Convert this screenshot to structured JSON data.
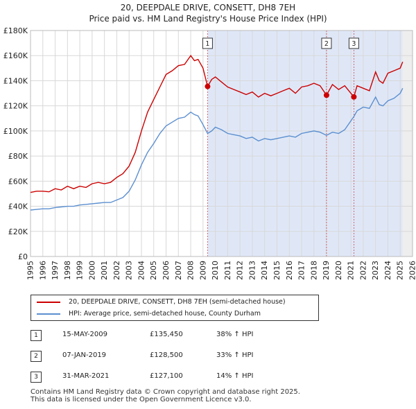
{
  "title_line1": "20, DEEPDALE DRIVE, CONSETT, DH8 7EH",
  "title_line2": "Price paid vs. HM Land Registry's House Price Index (HPI)",
  "colors": {
    "property": "#cc0000",
    "hpi": "#5b8fd0",
    "shade": "#dfe7f7",
    "grid": "#d8d8d8"
  },
  "legend": {
    "property_label": "20, DEEPDALE DRIVE, CONSETT, DH8 7EH (semi-detached house)",
    "hpi_label": "HPI: Average price, semi-detached house, County Durham"
  },
  "sales": [
    {
      "num": "1",
      "date": "15-MAY-2009",
      "price": "£135,450",
      "hpi": "38% ↑ HPI"
    },
    {
      "num": "2",
      "date": "07-JAN-2019",
      "price": "£128,500",
      "hpi": "33% ↑ HPI"
    },
    {
      "num": "3",
      "date": "31-MAR-2021",
      "price": "£127,100",
      "hpi": "14% ↑ HPI"
    }
  ],
  "footer_line1": "Contains HM Land Registry data © Crown copyright and database right 2025.",
  "footer_line2": "This data is licensed under the Open Government Licence v3.0.",
  "chart_data": {
    "type": "line",
    "title": "20, DEEPDALE DRIVE, CONSETT, DH8 7EH",
    "subtitle": "Price paid vs. HM Land Registry's House Price Index (HPI)",
    "xlabel": "",
    "ylabel": "",
    "xlim": [
      1995,
      2026
    ],
    "ylim": [
      0,
      180000
    ],
    "x_ticks": [
      1995,
      1996,
      1997,
      1998,
      1999,
      2000,
      2001,
      2002,
      2003,
      2004,
      2005,
      2006,
      2007,
      2008,
      2009,
      2010,
      2011,
      2012,
      2013,
      2014,
      2015,
      2016,
      2017,
      2018,
      2019,
      2020,
      2021,
      2022,
      2023,
      2024,
      2025,
      2026
    ],
    "y_ticks": [
      0,
      20000,
      40000,
      60000,
      80000,
      100000,
      120000,
      140000,
      160000,
      180000
    ],
    "y_tick_labels": [
      "£0",
      "£20K",
      "£40K",
      "£60K",
      "£80K",
      "£100K",
      "£120K",
      "£140K",
      "£160K",
      "£180K"
    ],
    "grid": true,
    "shaded_region": [
      2009.37,
      2025.2
    ],
    "future_region": [
      2025.2,
      2026
    ],
    "series": [
      {
        "name": "20, DEEPDALE DRIVE, CONSETT, DH8 7EH (semi-detached house)",
        "x": [
          1995,
          1995.5,
          1996,
          1996.5,
          1997,
          1997.5,
          1998,
          1998.5,
          1999,
          1999.5,
          2000,
          2000.5,
          2001,
          2001.5,
          2002,
          2002.5,
          2003,
          2003.5,
          2004,
          2004.5,
          2005,
          2005.5,
          2006,
          2006.5,
          2007,
          2007.5,
          2008,
          2008.3,
          2008.6,
          2009,
          2009.37,
          2009.7,
          2010,
          2010.5,
          2011,
          2011.5,
          2012,
          2012.5,
          2013,
          2013.5,
          2014,
          2014.5,
          2015,
          2015.5,
          2016,
          2016.5,
          2017,
          2017.5,
          2018,
          2018.5,
          2019.02,
          2019.5,
          2020,
          2020.5,
          2021.24,
          2021.5,
          2022,
          2022.5,
          2023,
          2023.3,
          2023.6,
          2024,
          2024.5,
          2025,
          2025.2
        ],
        "values": [
          51000,
          52000,
          52000,
          51500,
          54000,
          53000,
          56000,
          54000,
          56000,
          55000,
          58000,
          59000,
          58000,
          59000,
          63000,
          66000,
          72000,
          83000,
          100000,
          115000,
          125000,
          135000,
          145000,
          148000,
          152000,
          153000,
          160000,
          156000,
          157000,
          150000,
          135450,
          141000,
          143000,
          139000,
          135000,
          133000,
          131000,
          129000,
          131000,
          127000,
          130000,
          128000,
          130000,
          132000,
          134000,
          130000,
          135000,
          136000,
          138000,
          136000,
          128500,
          137000,
          133000,
          136000,
          127100,
          136000,
          134000,
          132000,
          147000,
          140000,
          138000,
          146000,
          148000,
          150000,
          155000
        ]
      },
      {
        "name": "HPI: Average price, semi-detached house, County Durham",
        "x": [
          1995,
          1995.5,
          1996,
          1996.5,
          1997,
          1997.5,
          1998,
          1998.5,
          1999,
          1999.5,
          2000,
          2000.5,
          2001,
          2001.5,
          2002,
          2002.5,
          2003,
          2003.5,
          2004,
          2004.5,
          2005,
          2005.5,
          2006,
          2006.5,
          2007,
          2007.5,
          2008,
          2008.3,
          2008.6,
          2009,
          2009.37,
          2009.7,
          2010,
          2010.5,
          2011,
          2011.5,
          2012,
          2012.5,
          2013,
          2013.5,
          2014,
          2014.5,
          2015,
          2015.5,
          2016,
          2016.5,
          2017,
          2017.5,
          2018,
          2018.5,
          2019.02,
          2019.5,
          2020,
          2020.5,
          2021.24,
          2021.5,
          2022,
          2022.5,
          2023,
          2023.3,
          2023.6,
          2024,
          2024.5,
          2025,
          2025.2
        ],
        "values": [
          37000,
          37500,
          38000,
          38000,
          39000,
          39500,
          40000,
          40000,
          41000,
          41500,
          42000,
          42500,
          43000,
          43000,
          45000,
          47000,
          52000,
          61000,
          73000,
          83000,
          90000,
          98000,
          104000,
          107000,
          110000,
          111000,
          115000,
          113000,
          112000,
          105000,
          98000,
          100000,
          103000,
          101000,
          98000,
          97000,
          96000,
          94000,
          95000,
          92000,
          94000,
          93000,
          94000,
          95000,
          96000,
          95000,
          98000,
          99000,
          100000,
          99000,
          96500,
          99000,
          98000,
          101000,
          111500,
          116000,
          119000,
          118000,
          127000,
          121000,
          120000,
          124000,
          126000,
          130000,
          134000
        ]
      }
    ],
    "annotations": [
      {
        "label": "1",
        "x": 2009.37,
        "y": 135450
      },
      {
        "label": "2",
        "x": 2019.02,
        "y": 128500
      },
      {
        "label": "3",
        "x": 2021.24,
        "y": 127100
      }
    ]
  }
}
